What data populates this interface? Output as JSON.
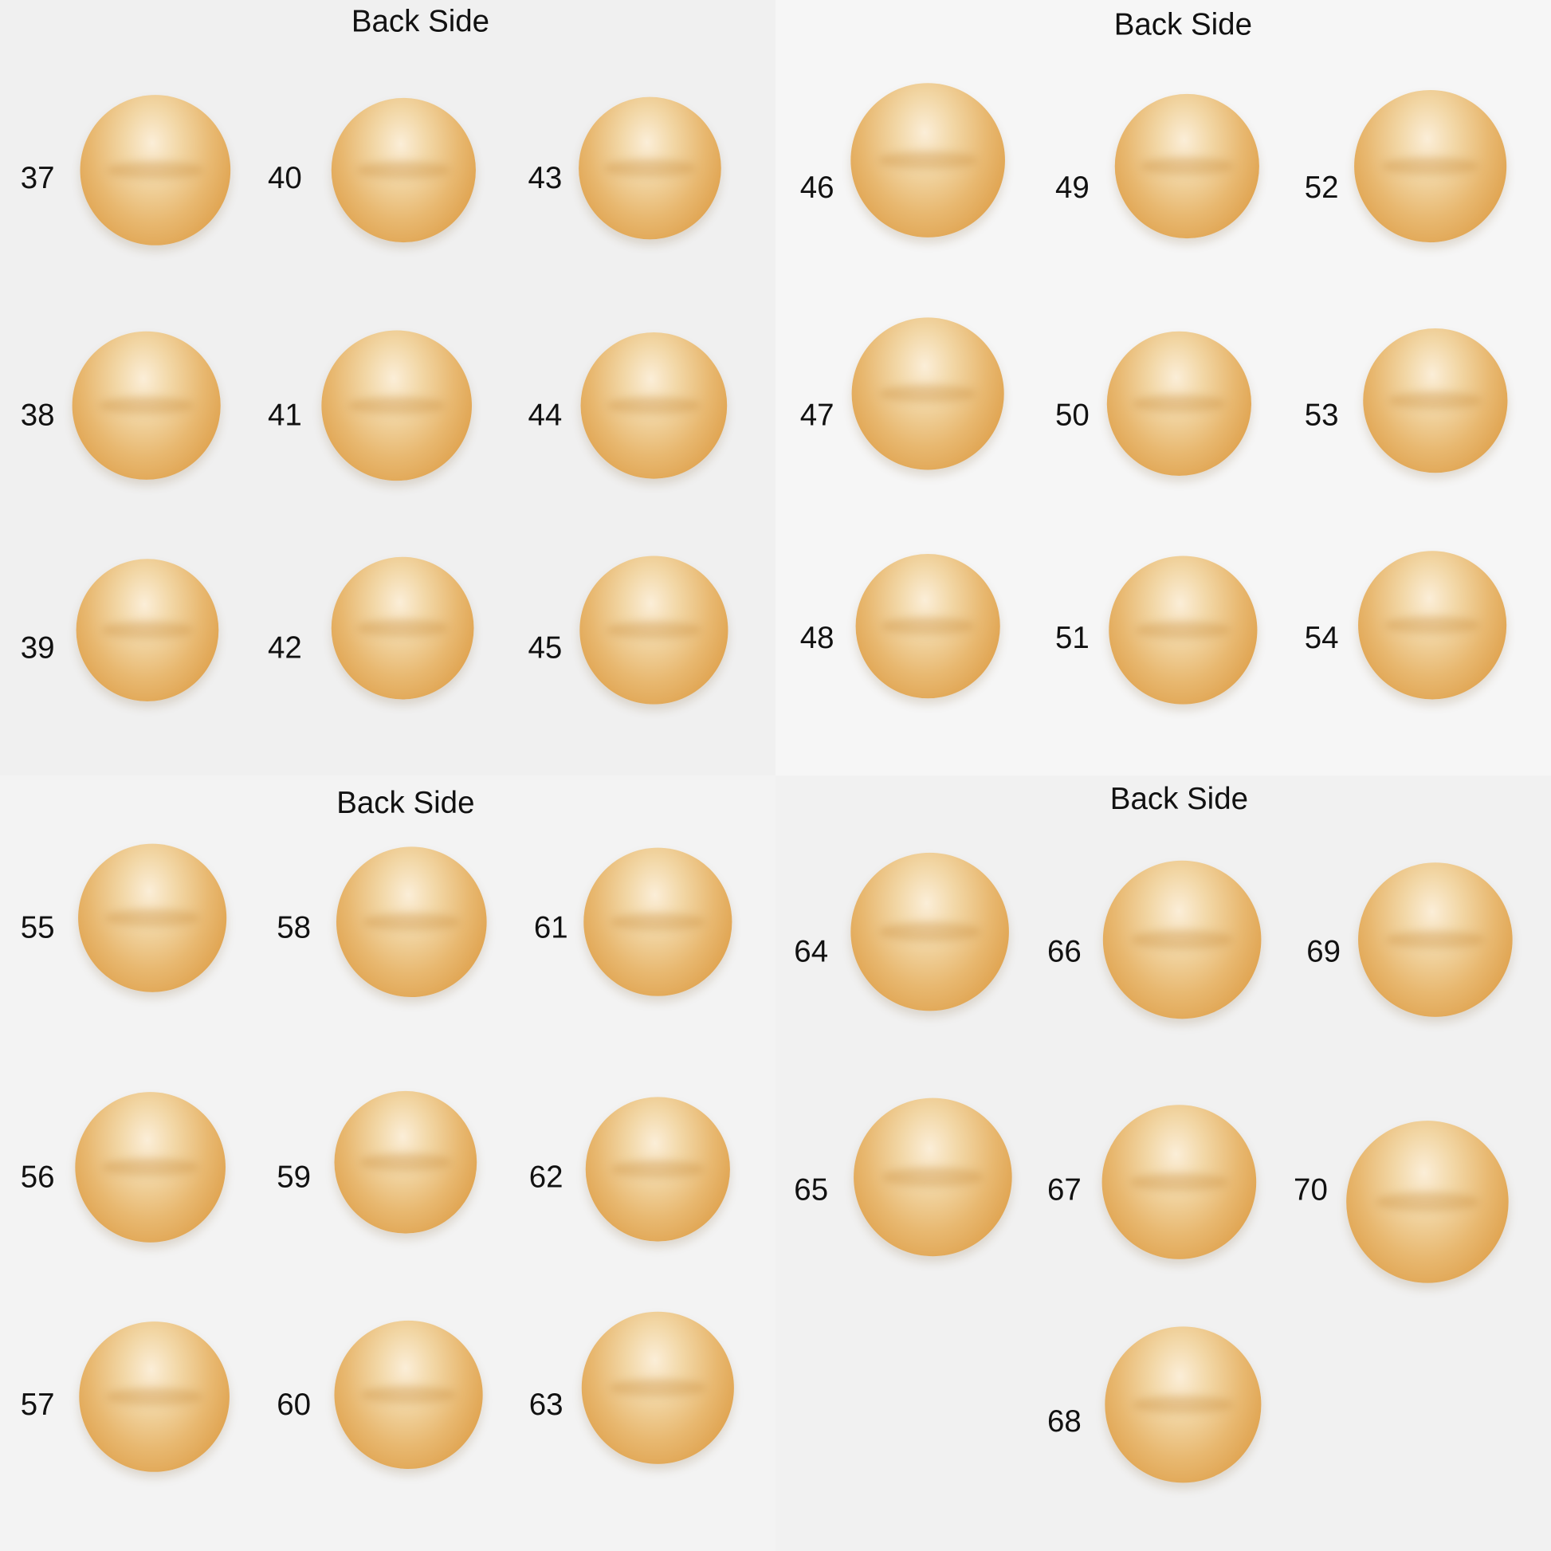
{
  "quadrants": [
    {
      "heading": "Back Side",
      "pearls": [
        "37",
        "40",
        "43",
        "38",
        "41",
        "44",
        "39",
        "42",
        "45"
      ]
    },
    {
      "heading": "Back Side",
      "pearls": [
        "46",
        "49",
        "52",
        "47",
        "50",
        "53",
        "48",
        "51",
        "54"
      ]
    },
    {
      "heading": "Back Side",
      "pearls": [
        "55",
        "58",
        "61",
        "56",
        "59",
        "62",
        "57",
        "60",
        "63"
      ]
    },
    {
      "heading": "Back Side",
      "pearls": [
        "64",
        "66",
        "69",
        "65",
        "67",
        "70",
        "68"
      ]
    }
  ],
  "colors": {
    "background": "#f1f1f1",
    "pearl_gold": "#e8b870",
    "text": "#111111"
  }
}
